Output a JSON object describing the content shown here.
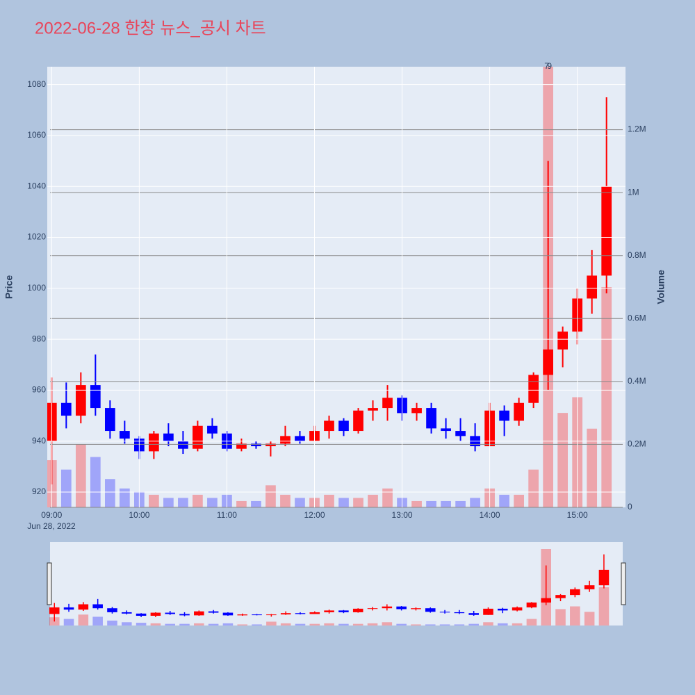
{
  "chart_data": {
    "type": "candlestick",
    "title": "2022-06-28 한창 뉴스_공시 차트",
    "x": [
      "2022-06-28 09:00",
      "2022-06-28 09:10",
      "2022-06-28 09:20",
      "2022-06-28 09:30",
      "2022-06-28 09:40",
      "2022-06-28 09:50",
      "2022-06-28 10:00",
      "2022-06-28 10:10",
      "2022-06-28 10:20",
      "2022-06-28 10:30",
      "2022-06-28 10:40",
      "2022-06-28 10:50",
      "2022-06-28 11:00",
      "2022-06-28 11:10",
      "2022-06-28 11:20",
      "2022-06-28 11:30",
      "2022-06-28 11:40",
      "2022-06-28 11:50",
      "2022-06-28 12:00",
      "2022-06-28 12:10",
      "2022-06-28 12:20",
      "2022-06-28 12:30",
      "2022-06-28 12:40",
      "2022-06-28 12:50",
      "2022-06-28 13:00",
      "2022-06-28 13:10",
      "2022-06-28 13:20",
      "2022-06-28 13:30",
      "2022-06-28 13:40",
      "2022-06-28 13:50",
      "2022-06-28 14:00",
      "2022-06-28 14:10",
      "2022-06-28 14:20",
      "2022-06-28 14:30",
      "2022-06-28 14:40",
      "2022-06-28 14:50",
      "2022-06-28 15:00",
      "2022-06-28 15:10",
      "2022-06-28 15:20"
    ],
    "open": [
      940,
      955,
      950,
      962,
      953,
      944,
      941,
      936,
      943,
      940,
      937,
      946,
      943,
      937,
      939,
      938,
      939,
      942,
      940,
      944,
      948,
      944,
      952,
      953,
      957,
      951,
      953,
      945,
      944,
      942,
      938,
      952,
      948,
      955,
      966,
      976,
      983,
      996,
      1005
    ],
    "high": [
      965,
      963,
      967,
      974,
      956,
      948,
      942,
      944,
      947,
      944,
      948,
      949,
      944,
      941,
      940,
      940,
      946,
      944,
      946,
      950,
      949,
      953,
      956,
      962,
      958,
      955,
      955,
      949,
      949,
      947,
      955,
      954,
      957,
      967,
      1050,
      985,
      1000,
      1015,
      1075
    ],
    "low": [
      923,
      945,
      947,
      950,
      941,
      939,
      933,
      933,
      938,
      935,
      936,
      941,
      936,
      936,
      937,
      934,
      938,
      939,
      940,
      941,
      942,
      943,
      948,
      948,
      948,
      948,
      943,
      941,
      940,
      936,
      938,
      942,
      946,
      953,
      960,
      969,
      978,
      990,
      998
    ],
    "close": [
      955,
      950,
      962,
      953,
      944,
      941,
      936,
      943,
      940,
      937,
      946,
      943,
      937,
      939,
      938,
      939,
      942,
      940,
      944,
      948,
      944,
      952,
      953,
      957,
      951,
      953,
      945,
      944,
      942,
      938,
      952,
      948,
      955,
      966,
      976,
      983,
      996,
      1005,
      1040
    ],
    "volume": [
      150000,
      120000,
      200000,
      160000,
      90000,
      60000,
      50000,
      40000,
      30000,
      30000,
      40000,
      30000,
      40000,
      20000,
      20000,
      70000,
      40000,
      30000,
      30000,
      40000,
      30000,
      30000,
      40000,
      60000,
      30000,
      20000,
      20000,
      20000,
      20000,
      30000,
      60000,
      40000,
      40000,
      120000,
      1400000,
      300000,
      350000,
      250000,
      700000
    ],
    "increasing_color": "#ff0000",
    "decreasing_color": "#0000ff",
    "xlim": [
      "2022-06-28 08:57",
      "2022-06-28 15:33"
    ],
    "xticks": [
      {
        "value": "2022-06-28 09:00",
        "label": "09:00"
      },
      {
        "value": "2022-06-28 10:00",
        "label": "10:00"
      },
      {
        "value": "2022-06-28 11:00",
        "label": "11:00"
      },
      {
        "value": "2022-06-28 12:00",
        "label": "12:00"
      },
      {
        "value": "2022-06-28 13:00",
        "label": "13:00"
      },
      {
        "value": "2022-06-28 14:00",
        "label": "14:00"
      },
      {
        "value": "2022-06-28 15:00",
        "label": "15:00"
      }
    ],
    "date_label": "Jun 28, 2022",
    "ylim": [
      914,
      1087
    ],
    "yticks": [
      920,
      940,
      960,
      980,
      1000,
      1020,
      1040,
      1060,
      1080
    ],
    "y2lim": [
      0,
      1400000
    ],
    "y2ticks": [
      0,
      {
        "value": 200000,
        "label": "0.2M"
      },
      {
        "value": 400000,
        "label": "0.4M"
      },
      {
        "value": 600000,
        "label": "0.6M"
      },
      {
        "value": 800000,
        "label": "0.8M"
      },
      {
        "value": 1000000,
        "label": "1M"
      },
      {
        "value": 1200000,
        "label": "1.2M"
      }
    ],
    "yaxis_title": "Price",
    "y2axis_title": "Volume",
    "annotations": [
      {
        "x": "2022-06-28 14:39",
        "text": "7"
      },
      {
        "x": "2022-06-28 14:41",
        "text": "9"
      }
    ]
  }
}
